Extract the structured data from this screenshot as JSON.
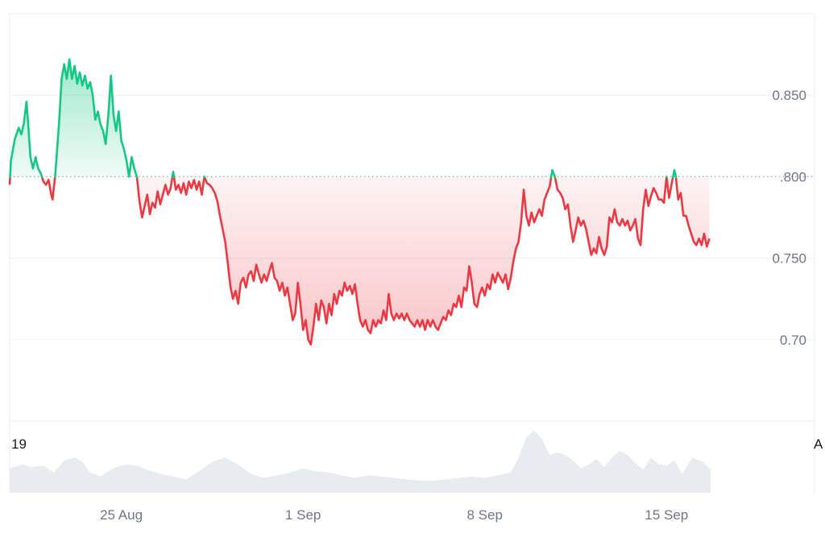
{
  "chart_data": {
    "type": "area",
    "baseline": 0.8,
    "ylim": [
      0.65,
      0.9
    ],
    "y_ticks": [
      {
        "value": 0.85,
        "label": "0.850"
      },
      {
        "value": 0.8,
        "label": ".800"
      },
      {
        "value": 0.75,
        "label": "0.750"
      },
      {
        "value": 0.7,
        "label": "0.70"
      }
    ],
    "x_ticks": [
      {
        "value": 3.0,
        "label": "25 Aug"
      },
      {
        "value": 10.0,
        "label": "1 Sep"
      },
      {
        "value": 17.0,
        "label": "8 Sep"
      },
      {
        "value": 24.0,
        "label": "15 Sep"
      }
    ],
    "xlim": [
      -1.3,
      29.7
    ],
    "corner_labels": {
      "left": "19",
      "right": "A"
    },
    "colors": {
      "up": "#16c784",
      "down": "#ea3943",
      "volume": "#e8ebef",
      "grid": "#eef0f3",
      "baseline": "#a0a4ab"
    },
    "series": [
      {
        "values": [
          [
            -1.3,
            0.795
          ],
          [
            -1.25,
            0.81
          ],
          [
            -1.1,
            0.823
          ],
          [
            -0.95,
            0.83
          ],
          [
            -0.85,
            0.826
          ],
          [
            -0.75,
            0.833
          ],
          [
            -0.65,
            0.846
          ],
          [
            -0.6,
            0.835
          ],
          [
            -0.5,
            0.812
          ],
          [
            -0.4,
            0.805
          ],
          [
            -0.3,
            0.812
          ],
          [
            -0.2,
            0.805
          ],
          [
            -0.1,
            0.802
          ],
          [
            0.0,
            0.797
          ],
          [
            0.1,
            0.795
          ],
          [
            0.2,
            0.798
          ],
          [
            0.3,
            0.789
          ],
          [
            0.35,
            0.786
          ],
          [
            0.45,
            0.8
          ],
          [
            0.6,
            0.832
          ],
          [
            0.7,
            0.86
          ],
          [
            0.8,
            0.869
          ],
          [
            0.9,
            0.86
          ],
          [
            1.0,
            0.872
          ],
          [
            1.1,
            0.86
          ],
          [
            1.2,
            0.868
          ],
          [
            1.3,
            0.857
          ],
          [
            1.4,
            0.864
          ],
          [
            1.5,
            0.856
          ],
          [
            1.6,
            0.862
          ],
          [
            1.7,
            0.854
          ],
          [
            1.8,
            0.858
          ],
          [
            1.9,
            0.85
          ],
          [
            2.0,
            0.835
          ],
          [
            2.1,
            0.84
          ],
          [
            2.2,
            0.832
          ],
          [
            2.3,
            0.828
          ],
          [
            2.4,
            0.82
          ],
          [
            2.5,
            0.838
          ],
          [
            2.6,
            0.862
          ],
          [
            2.7,
            0.838
          ],
          [
            2.8,
            0.828
          ],
          [
            2.9,
            0.84
          ],
          [
            3.0,
            0.822
          ],
          [
            3.1,
            0.817
          ],
          [
            3.2,
            0.81
          ],
          [
            3.3,
            0.8
          ],
          [
            3.4,
            0.812
          ],
          [
            3.5,
            0.805
          ],
          [
            3.6,
            0.8
          ],
          [
            3.7,
            0.785
          ],
          [
            3.8,
            0.775
          ],
          [
            3.9,
            0.782
          ],
          [
            4.0,
            0.789
          ],
          [
            4.1,
            0.777
          ],
          [
            4.2,
            0.784
          ],
          [
            4.3,
            0.781
          ],
          [
            4.4,
            0.791
          ],
          [
            4.5,
            0.783
          ],
          [
            4.6,
            0.789
          ],
          [
            4.7,
            0.795
          ],
          [
            4.8,
            0.789
          ],
          [
            4.9,
            0.793
          ],
          [
            5.0,
            0.803
          ],
          [
            5.1,
            0.792
          ],
          [
            5.2,
            0.795
          ],
          [
            5.3,
            0.79
          ],
          [
            5.4,
            0.796
          ],
          [
            5.5,
            0.789
          ],
          [
            5.6,
            0.797
          ],
          [
            5.7,
            0.793
          ],
          [
            5.8,
            0.798
          ],
          [
            5.9,
            0.792
          ],
          [
            6.0,
            0.797
          ],
          [
            6.1,
            0.789
          ],
          [
            6.2,
            0.8
          ],
          [
            6.3,
            0.796
          ],
          [
            6.4,
            0.795
          ],
          [
            6.5,
            0.793
          ],
          [
            6.6,
            0.79
          ],
          [
            6.7,
            0.785
          ],
          [
            6.8,
            0.776
          ],
          [
            6.9,
            0.768
          ],
          [
            7.0,
            0.76
          ],
          [
            7.1,
            0.747
          ],
          [
            7.2,
            0.733
          ],
          [
            7.3,
            0.725
          ],
          [
            7.4,
            0.73
          ],
          [
            7.5,
            0.722
          ],
          [
            7.6,
            0.735
          ],
          [
            7.7,
            0.738
          ],
          [
            7.8,
            0.732
          ],
          [
            7.9,
            0.74
          ],
          [
            8.0,
            0.742
          ],
          [
            8.1,
            0.736
          ],
          [
            8.2,
            0.746
          ],
          [
            8.3,
            0.74
          ],
          [
            8.4,
            0.735
          ],
          [
            8.5,
            0.74
          ],
          [
            8.6,
            0.736
          ],
          [
            8.7,
            0.742
          ],
          [
            8.8,
            0.747
          ],
          [
            8.9,
            0.738
          ],
          [
            9.0,
            0.736
          ],
          [
            9.1,
            0.73
          ],
          [
            9.2,
            0.735
          ],
          [
            9.3,
            0.727
          ],
          [
            9.4,
            0.732
          ],
          [
            9.5,
            0.722
          ],
          [
            9.6,
            0.712
          ],
          [
            9.7,
            0.716
          ],
          [
            9.8,
            0.735
          ],
          [
            9.9,
            0.722
          ],
          [
            10.0,
            0.706
          ],
          [
            10.1,
            0.712
          ],
          [
            10.2,
            0.7
          ],
          [
            10.3,
            0.697
          ],
          [
            10.4,
            0.708
          ],
          [
            10.5,
            0.722
          ],
          [
            10.6,
            0.712
          ],
          [
            10.7,
            0.724
          ],
          [
            10.8,
            0.72
          ],
          [
            10.9,
            0.71
          ],
          [
            11.0,
            0.722
          ],
          [
            11.1,
            0.715
          ],
          [
            11.2,
            0.728
          ],
          [
            11.3,
            0.722
          ],
          [
            11.4,
            0.73
          ],
          [
            11.5,
            0.727
          ],
          [
            11.6,
            0.735
          ],
          [
            11.7,
            0.73
          ],
          [
            11.8,
            0.733
          ],
          [
            11.9,
            0.728
          ],
          [
            12.0,
            0.734
          ],
          [
            12.1,
            0.722
          ],
          [
            12.2,
            0.712
          ],
          [
            12.3,
            0.708
          ],
          [
            12.4,
            0.712
          ],
          [
            12.5,
            0.706
          ],
          [
            12.6,
            0.704
          ],
          [
            12.7,
            0.712
          ],
          [
            12.8,
            0.708
          ],
          [
            12.9,
            0.712
          ],
          [
            13.0,
            0.71
          ],
          [
            13.1,
            0.718
          ],
          [
            13.2,
            0.712
          ],
          [
            13.3,
            0.728
          ],
          [
            13.4,
            0.716
          ],
          [
            13.5,
            0.712
          ],
          [
            13.6,
            0.716
          ],
          [
            13.7,
            0.713
          ],
          [
            13.8,
            0.716
          ],
          [
            13.9,
            0.712
          ],
          [
            14.0,
            0.716
          ],
          [
            14.1,
            0.712
          ],
          [
            14.2,
            0.71
          ],
          [
            14.3,
            0.708
          ],
          [
            14.4,
            0.712
          ],
          [
            14.5,
            0.708
          ],
          [
            14.6,
            0.712
          ],
          [
            14.7,
            0.706
          ],
          [
            14.8,
            0.712
          ],
          [
            14.9,
            0.708
          ],
          [
            15.0,
            0.712
          ],
          [
            15.1,
            0.708
          ],
          [
            15.2,
            0.706
          ],
          [
            15.3,
            0.71
          ],
          [
            15.4,
            0.714
          ],
          [
            15.5,
            0.712
          ],
          [
            15.6,
            0.718
          ],
          [
            15.7,
            0.715
          ],
          [
            15.8,
            0.722
          ],
          [
            15.9,
            0.72
          ],
          [
            16.0,
            0.727
          ],
          [
            16.1,
            0.72
          ],
          [
            16.2,
            0.732
          ],
          [
            16.3,
            0.73
          ],
          [
            16.4,
            0.745
          ],
          [
            16.5,
            0.735
          ],
          [
            16.6,
            0.722
          ],
          [
            16.7,
            0.72
          ],
          [
            16.8,
            0.728
          ],
          [
            16.9,
            0.732
          ],
          [
            17.0,
            0.727
          ],
          [
            17.1,
            0.734
          ],
          [
            17.2,
            0.731
          ],
          [
            17.3,
            0.74
          ],
          [
            17.4,
            0.735
          ],
          [
            17.5,
            0.741
          ],
          [
            17.6,
            0.738
          ],
          [
            17.7,
            0.735
          ],
          [
            17.8,
            0.74
          ],
          [
            17.9,
            0.731
          ],
          [
            18.0,
            0.738
          ],
          [
            18.1,
            0.748
          ],
          [
            18.2,
            0.756
          ],
          [
            18.3,
            0.76
          ],
          [
            18.4,
            0.772
          ],
          [
            18.5,
            0.792
          ],
          [
            18.6,
            0.776
          ],
          [
            18.7,
            0.77
          ],
          [
            18.8,
            0.778
          ],
          [
            18.9,
            0.772
          ],
          [
            19.0,
            0.776
          ],
          [
            19.1,
            0.78
          ],
          [
            19.2,
            0.776
          ],
          [
            19.3,
            0.786
          ],
          [
            19.4,
            0.79
          ],
          [
            19.5,
            0.794
          ],
          [
            19.6,
            0.804
          ],
          [
            19.7,
            0.8
          ],
          [
            19.8,
            0.792
          ],
          [
            19.9,
            0.79
          ],
          [
            20.0,
            0.787
          ],
          [
            20.1,
            0.78
          ],
          [
            20.2,
            0.783
          ],
          [
            20.3,
            0.77
          ],
          [
            20.4,
            0.76
          ],
          [
            20.5,
            0.767
          ],
          [
            20.6,
            0.775
          ],
          [
            20.7,
            0.77
          ],
          [
            20.8,
            0.773
          ],
          [
            20.9,
            0.768
          ],
          [
            21.0,
            0.76
          ],
          [
            21.1,
            0.752
          ],
          [
            21.2,
            0.756
          ],
          [
            21.3,
            0.753
          ],
          [
            21.4,
            0.763
          ],
          [
            21.5,
            0.756
          ],
          [
            21.6,
            0.752
          ],
          [
            21.7,
            0.757
          ],
          [
            21.8,
            0.775
          ],
          [
            21.9,
            0.772
          ],
          [
            22.0,
            0.78
          ],
          [
            22.1,
            0.772
          ],
          [
            22.2,
            0.77
          ],
          [
            22.3,
            0.774
          ],
          [
            22.4,
            0.77
          ],
          [
            22.5,
            0.773
          ],
          [
            22.6,
            0.767
          ],
          [
            22.7,
            0.77
          ],
          [
            22.8,
            0.774
          ],
          [
            22.9,
            0.762
          ],
          [
            23.0,
            0.758
          ],
          [
            23.1,
            0.78
          ],
          [
            23.2,
            0.792
          ],
          [
            23.3,
            0.782
          ],
          [
            23.4,
            0.788
          ],
          [
            23.5,
            0.793
          ],
          [
            23.6,
            0.79
          ],
          [
            23.7,
            0.786
          ],
          [
            23.8,
            0.786
          ],
          [
            23.9,
            0.784
          ],
          [
            24.0,
            0.8
          ],
          [
            24.1,
            0.787
          ],
          [
            24.2,
            0.796
          ],
          [
            24.3,
            0.804
          ],
          [
            24.35,
            0.801
          ],
          [
            24.45,
            0.786
          ],
          [
            24.55,
            0.79
          ],
          [
            24.65,
            0.776
          ],
          [
            24.75,
            0.776
          ],
          [
            24.85,
            0.77
          ],
          [
            24.95,
            0.765
          ],
          [
            25.05,
            0.76
          ],
          [
            25.15,
            0.758
          ],
          [
            25.25,
            0.762
          ],
          [
            25.35,
            0.758
          ],
          [
            25.45,
            0.765
          ],
          [
            25.55,
            0.757
          ],
          [
            25.65,
            0.762
          ]
        ]
      }
    ],
    "volume": {
      "x": [
        -1.3,
        -0.8,
        -0.5,
        0.0,
        0.4,
        0.8,
        1.2,
        1.5,
        1.8,
        2.2,
        2.5,
        2.8,
        3.2,
        3.6,
        4.0,
        4.5,
        5.0,
        5.5,
        6.0,
        6.5,
        7.0,
        7.5,
        8.0,
        8.5,
        9.0,
        9.5,
        10.0,
        10.5,
        11.0,
        11.5,
        12.0,
        12.5,
        13.0,
        13.5,
        14.0,
        14.5,
        15.0,
        15.5,
        16.0,
        16.5,
        17.0,
        17.5,
        18.0,
        18.3,
        18.6,
        18.9,
        19.2,
        19.5,
        19.8,
        20.1,
        20.4,
        20.7,
        21.0,
        21.3,
        21.6,
        21.9,
        22.2,
        22.5,
        22.8,
        23.1,
        23.4,
        23.7,
        24.0,
        24.3,
        24.6,
        25.0,
        25.4,
        25.7
      ],
      "values": [
        0.36,
        0.42,
        0.38,
        0.4,
        0.3,
        0.48,
        0.52,
        0.46,
        0.3,
        0.24,
        0.32,
        0.38,
        0.42,
        0.4,
        0.34,
        0.28,
        0.24,
        0.2,
        0.32,
        0.46,
        0.52,
        0.42,
        0.28,
        0.22,
        0.26,
        0.3,
        0.36,
        0.32,
        0.3,
        0.26,
        0.22,
        0.26,
        0.24,
        0.22,
        0.2,
        0.18,
        0.18,
        0.2,
        0.22,
        0.24,
        0.22,
        0.26,
        0.3,
        0.52,
        0.82,
        0.92,
        0.8,
        0.56,
        0.6,
        0.56,
        0.48,
        0.36,
        0.42,
        0.5,
        0.38,
        0.52,
        0.62,
        0.56,
        0.44,
        0.34,
        0.52,
        0.42,
        0.4,
        0.48,
        0.28,
        0.52,
        0.46,
        0.34
      ]
    }
  }
}
